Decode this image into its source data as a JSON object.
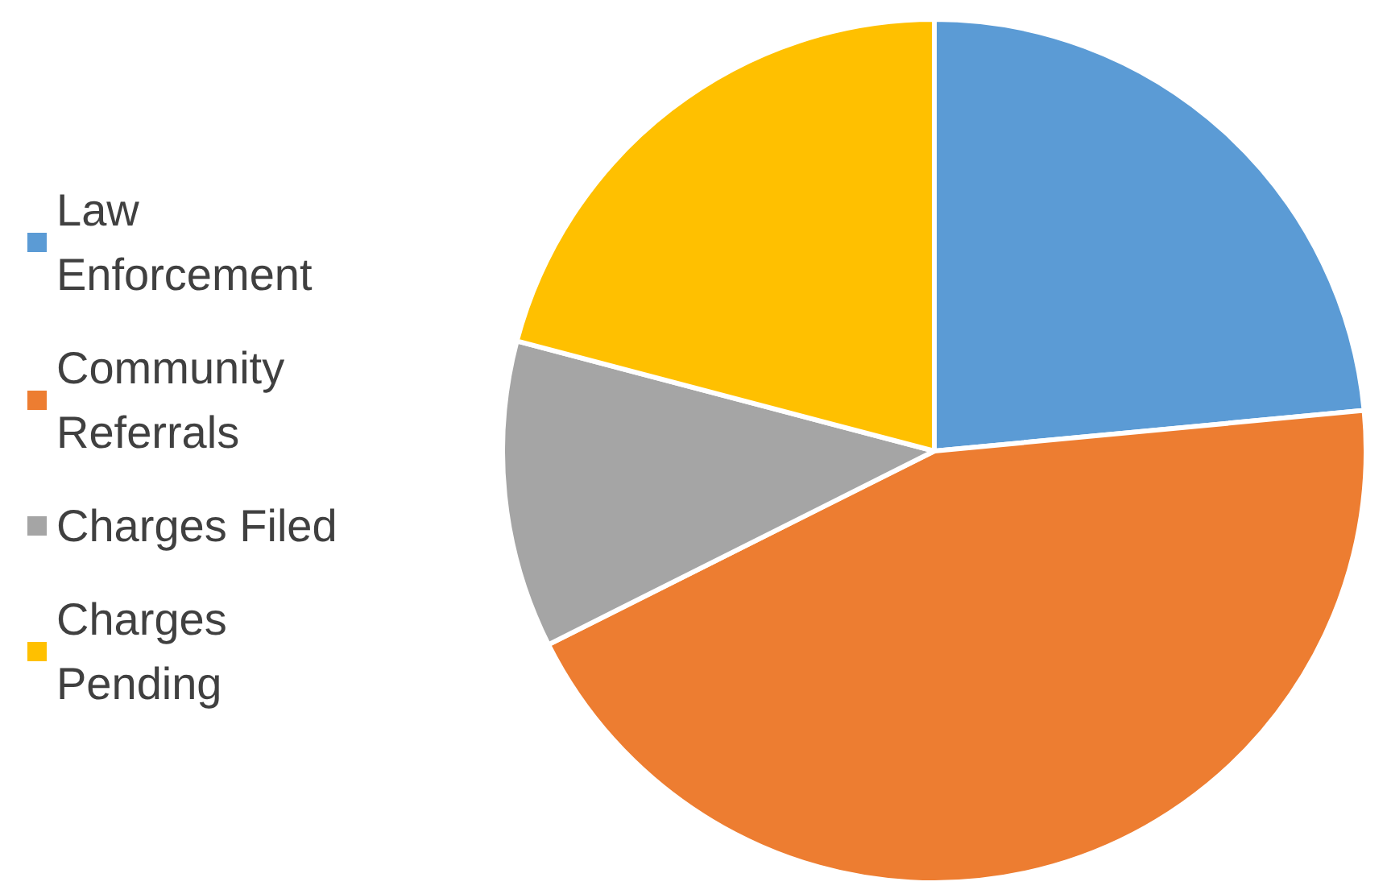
{
  "chart_data": {
    "type": "pie",
    "categories": [
      "Law Enforcement",
      "Community Referrals",
      "Charges Filed",
      "Charges Pending"
    ],
    "values": [
      23.5,
      44.1,
      11.5,
      20.9
    ],
    "colors": [
      "#5b9bd5",
      "#ed7d31",
      "#a5a5a5",
      "#ffc000"
    ],
    "legend": "left"
  }
}
